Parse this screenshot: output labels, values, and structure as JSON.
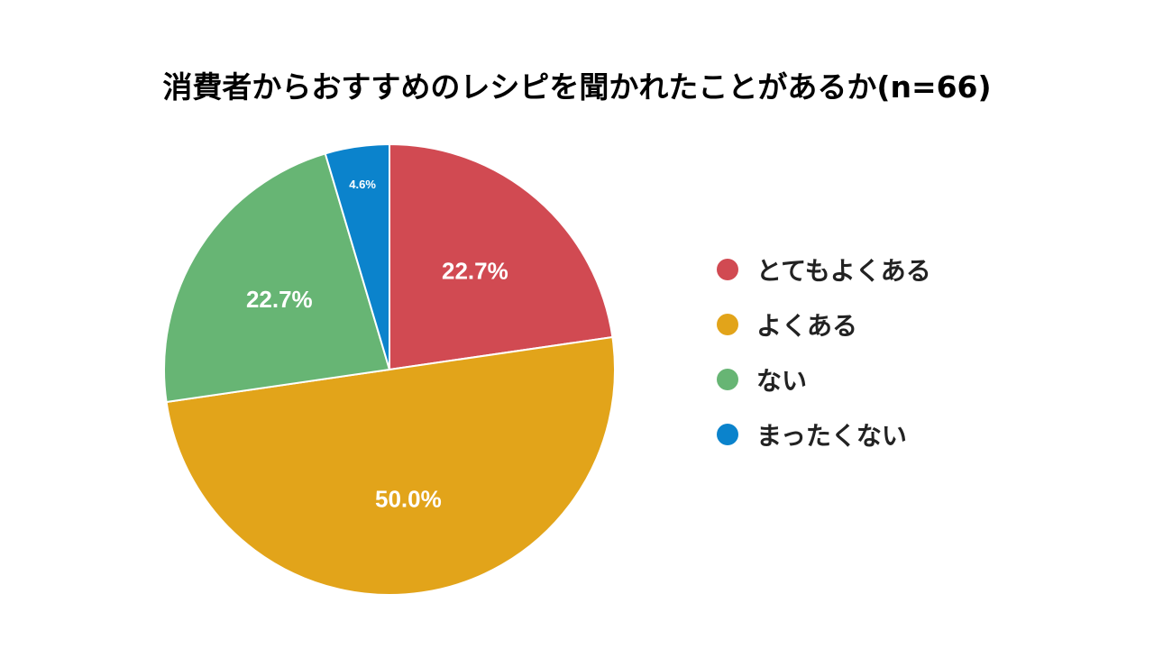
{
  "chart_data": {
    "type": "pie",
    "title": "消費者からおすすめのレシピを聞かれたことがあるか(n=66)",
    "legend_position": "right",
    "slices": [
      {
        "name": "とてもよくある",
        "value": 22.7,
        "label": "22.7%",
        "color": "#d14a52"
      },
      {
        "name": "よくある",
        "value": 50.0,
        "label": "50.0%",
        "color": "#e2a41a"
      },
      {
        "name": "ない",
        "value": 22.7,
        "label": "22.7%",
        "color": "#67b574"
      },
      {
        "name": "まったくない",
        "value": 4.6,
        "label": "4.6%",
        "color": "#0b83cc"
      }
    ]
  }
}
